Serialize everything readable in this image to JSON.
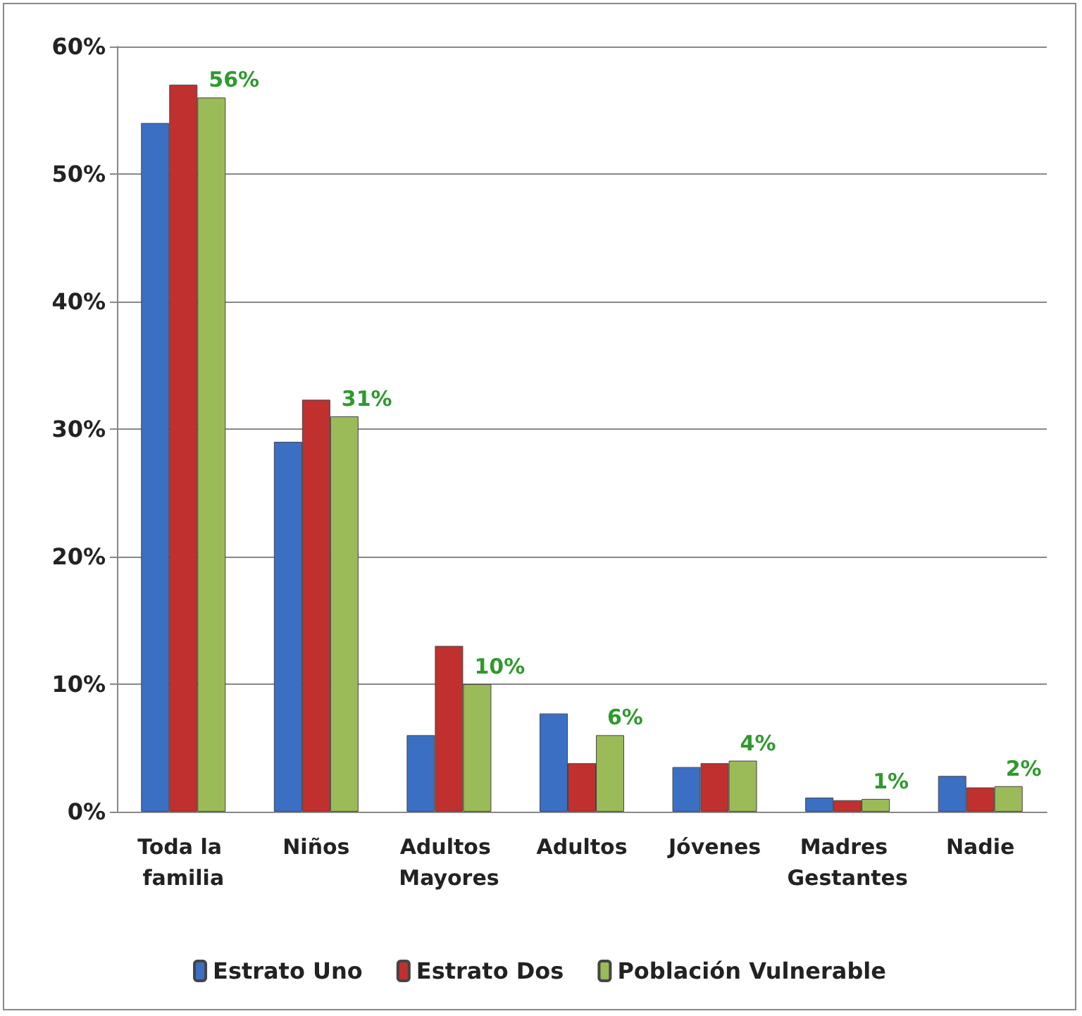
{
  "chart_data": {
    "type": "bar",
    "categories": [
      "Toda la familia",
      "Niños",
      "Adultos Mayores",
      "Adultos",
      "Jóvenes",
      "Madres Gestantes",
      "Nadie"
    ],
    "series": [
      {
        "name": "Estrato Uno",
        "color": "#3a6fc4",
        "values": [
          54,
          29,
          6,
          7.7,
          3.5,
          1.1,
          2.8
        ]
      },
      {
        "name": "Estrato Dos",
        "color": "#c0302f",
        "values": [
          57,
          32.3,
          13,
          3.8,
          3.8,
          0.9,
          1.9
        ]
      },
      {
        "name": "Población Vulnerable",
        "color": "#9bbb59",
        "values": [
          56,
          31,
          10,
          6,
          4,
          1,
          2
        ],
        "value_labels": [
          "56%",
          "31%",
          "10%",
          "6%",
          "4%",
          "1%",
          "2%"
        ]
      }
    ],
    "ylim": [
      0,
      60
    ],
    "yticks": [
      {
        "value": 0,
        "label": "0%"
      },
      {
        "value": 10,
        "label": "10%"
      },
      {
        "value": 20,
        "label": "20%"
      },
      {
        "value": 30,
        "label": "30%"
      },
      {
        "value": 40,
        "label": "40%"
      },
      {
        "value": 50,
        "label": "50%"
      },
      {
        "value": 60,
        "label": "60%"
      }
    ],
    "grid": "y",
    "legend": "bottom"
  }
}
